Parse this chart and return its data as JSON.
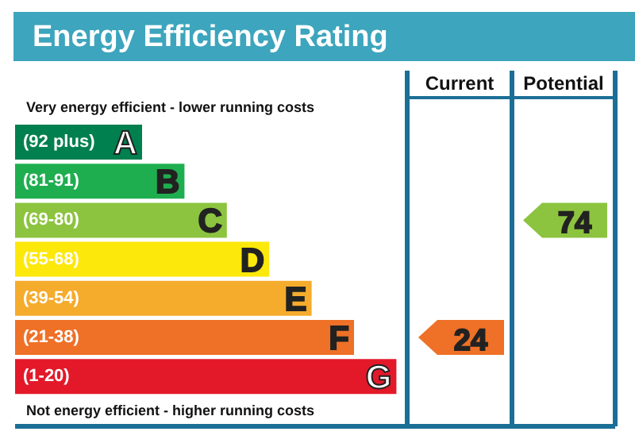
{
  "chart_data": {
    "type": "other",
    "title": "Energy Efficiency Rating",
    "categories": [
      "(92 plus)",
      "(81-91)",
      "(69-80)",
      "(55-68)",
      "(39-54)",
      "(21-38)",
      "(1-20)"
    ],
    "colors": [
      "#00804f",
      "#1fae4f",
      "#8cc43f",
      "#fde80b",
      "#f5ab2c",
      "#ee7127",
      "#e3192a"
    ],
    "value_labels": [
      "A",
      "B",
      "C",
      "D",
      "E",
      "F",
      "G"
    ],
    "series": [
      {
        "values": [
          null,
          null,
          null,
          null,
          null,
          24,
          null
        ]
      },
      {
        "values": [
          null,
          null,
          74,
          null,
          null,
          null,
          null
        ]
      }
    ],
    "data_labels": true,
    "annotations": [
      "Very energy efficient - lower running costs",
      "Not energy efficient - higher running costs",
      "Current",
      "Potential"
    ]
  }
}
